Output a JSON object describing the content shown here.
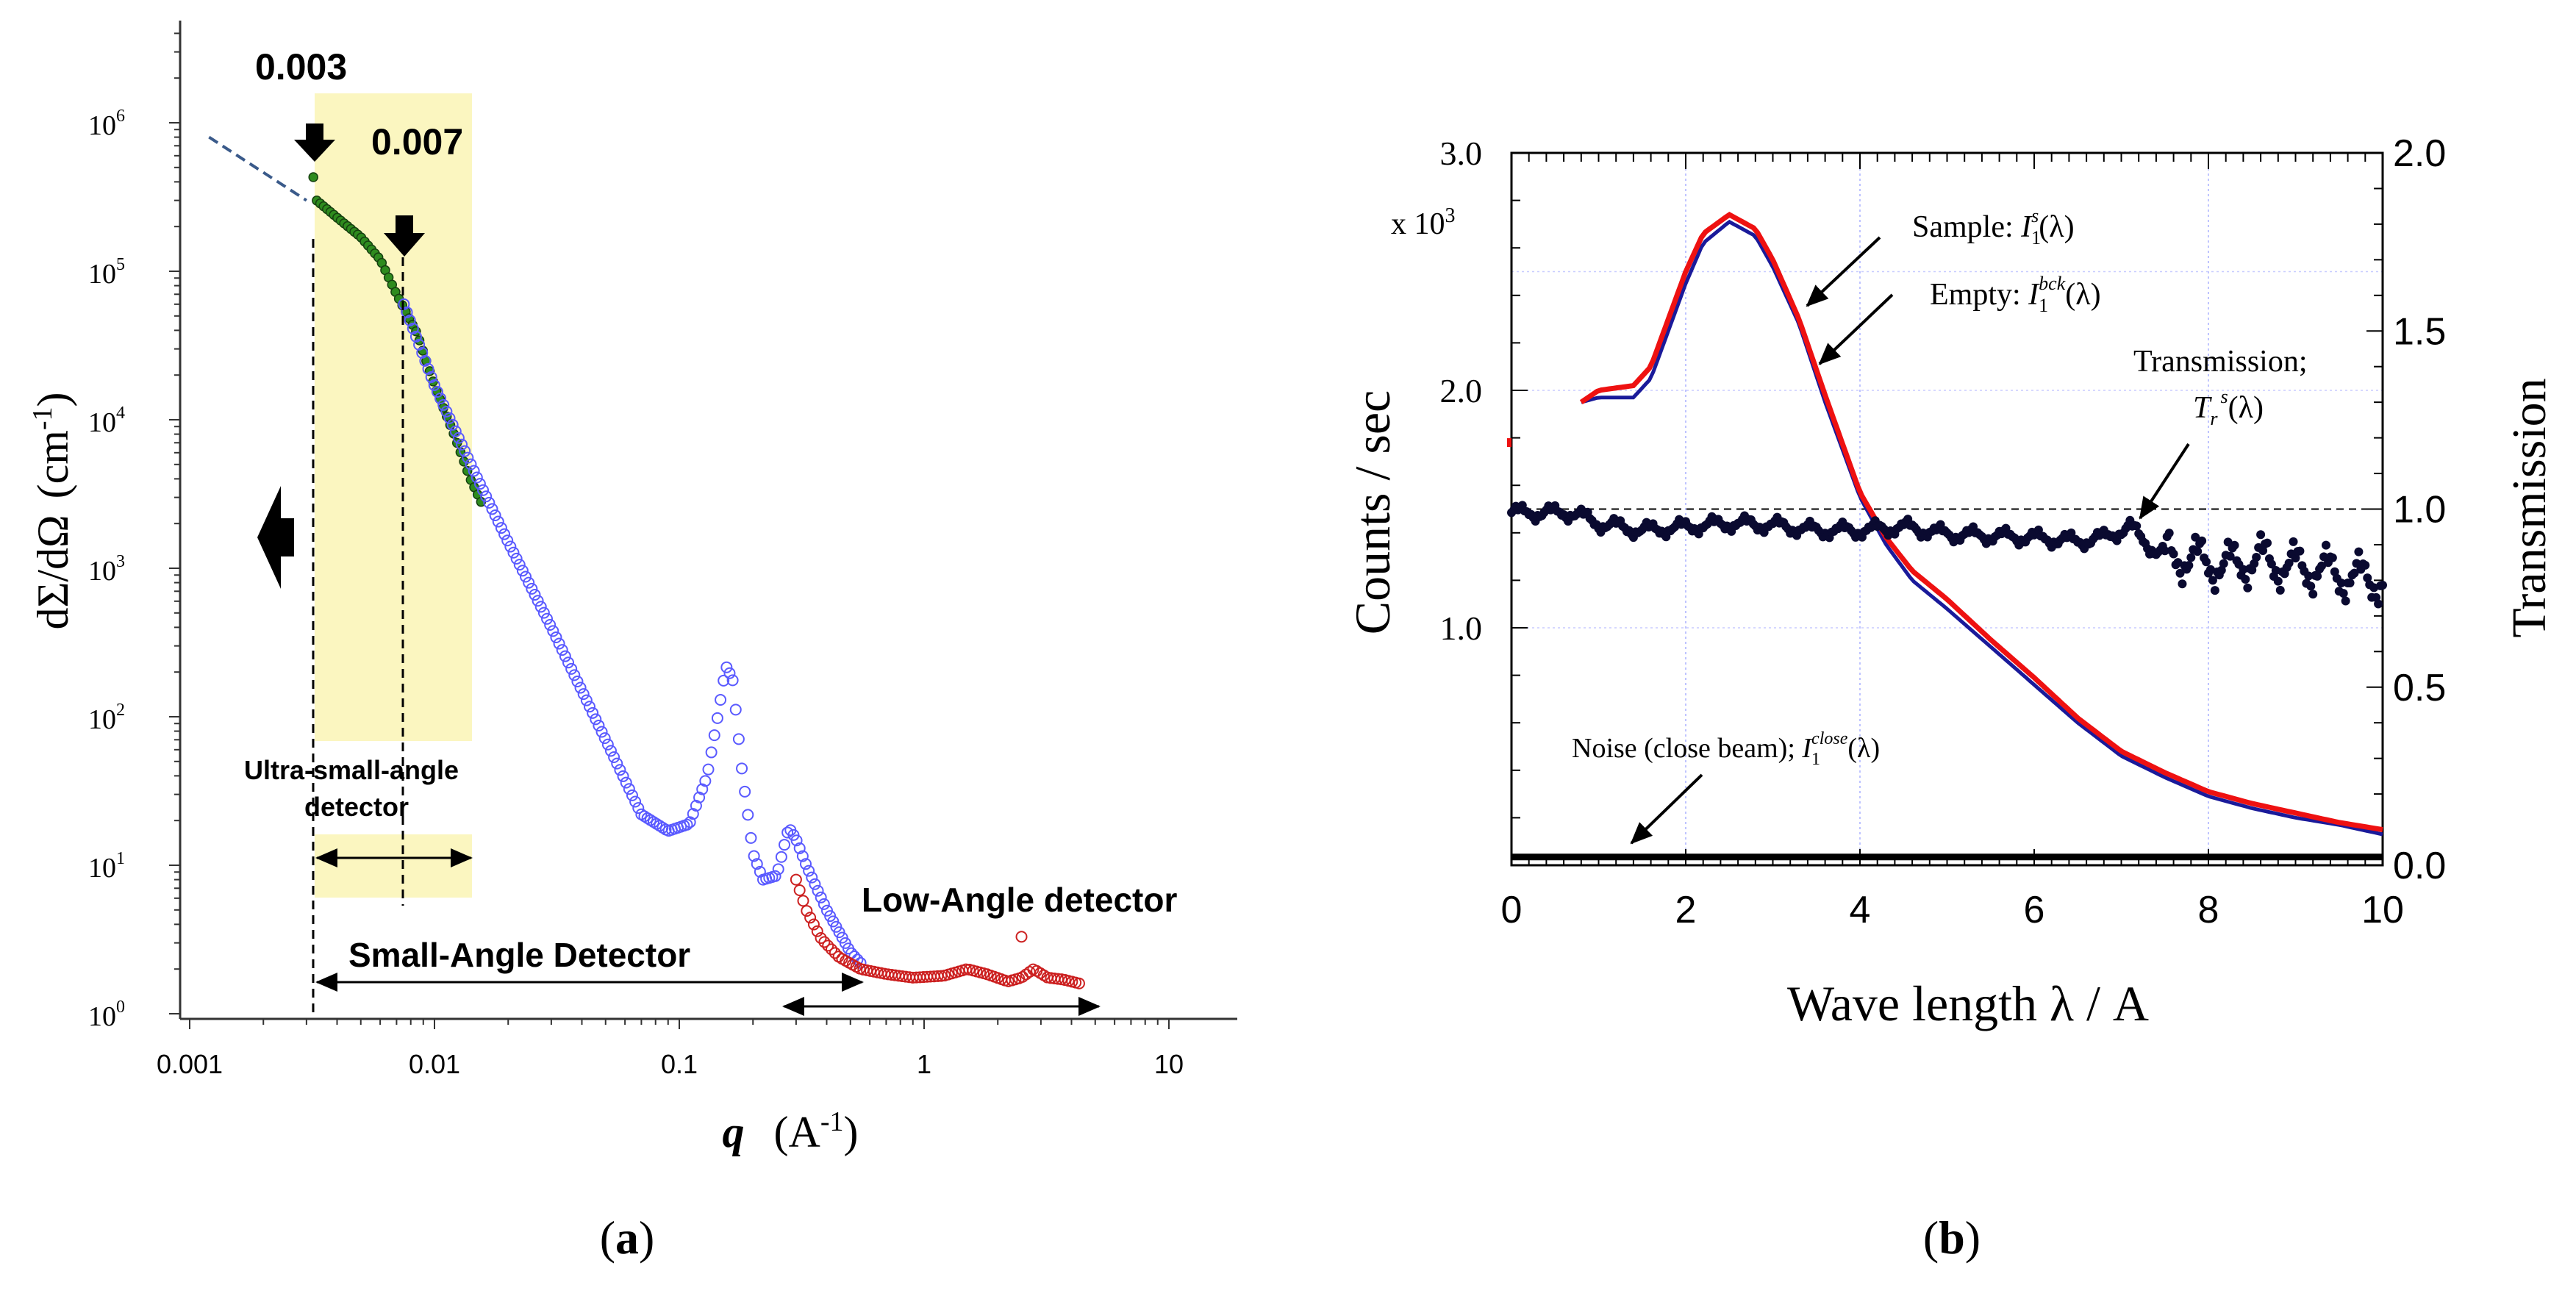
{
  "chart_data": [
    {
      "type": "scatter",
      "panel_label": "a",
      "xlabel": "q",
      "xunit": "(A",
      "xunit_sup": "-1",
      "xunit_end": ")",
      "ylabel": "dΣ/dΩ",
      "yunit": "(cm",
      "yunit_sup": "-1",
      "yunit_end": ")",
      "xscale": "log",
      "yscale": "log",
      "xlim": [
        0.00095,
        18
      ],
      "ylim": [
        0.9,
        5000000
      ],
      "xticks": [
        {
          "v": 0.001,
          "label": "0.001"
        },
        {
          "v": 0.01,
          "label": "0.01"
        },
        {
          "v": 0.1,
          "label": "0.1"
        },
        {
          "v": 1,
          "label": "1"
        },
        {
          "v": 10,
          "label": "10"
        }
      ],
      "yticks": [
        {
          "v": 1,
          "base": "10",
          "exp": "0"
        },
        {
          "v": 10,
          "base": "10",
          "exp": "1"
        },
        {
          "v": 100,
          "base": "10",
          "exp": "2"
        },
        {
          "v": 1000,
          "base": "10",
          "exp": "3"
        },
        {
          "v": 10000,
          "base": "10",
          "exp": "4"
        },
        {
          "v": 100000,
          "base": "10",
          "exp": "5"
        },
        {
          "v": 1000000,
          "base": "10",
          "exp": "6"
        }
      ],
      "series": [
        {
          "name": "ultra-small-angle",
          "color": "#2e8b1e",
          "marker": "filled",
          "x": [
            0.0032,
            0.0033,
            0.004,
            0.005,
            0.006,
            0.007,
            0.0085,
            0.01,
            0.012,
            0.014,
            0.016
          ],
          "y": [
            430000,
            300000,
            230000,
            170000,
            120000,
            70000,
            38000,
            17000,
            8000,
            4000,
            2500
          ]
        },
        {
          "name": "small-angle",
          "color": "#5a5aff",
          "marker": "open",
          "x": [
            0.0075,
            0.01,
            0.015,
            0.02,
            0.03,
            0.05,
            0.07,
            0.09,
            0.11,
            0.13,
            0.145,
            0.155,
            0.165,
            0.18,
            0.2,
            0.22,
            0.25,
            0.28,
            0.3,
            0.33,
            0.4,
            0.5,
            0.55
          ],
          "y": [
            60000,
            17000,
            4000,
            1500,
            400,
            70,
            22,
            17,
            19,
            40,
            110,
            220,
            180,
            45,
            12,
            8,
            8.5,
            18,
            15,
            10,
            5,
            2.6,
            2.2
          ]
        },
        {
          "name": "low-angle",
          "color": "#cc2020",
          "marker": "open",
          "x": [
            0.3,
            0.33,
            0.38,
            0.45,
            0.55,
            0.7,
            0.9,
            1.2,
            1.5,
            1.8,
            2.2,
            2.5,
            2.8,
            3.2,
            3.7,
            4.3
          ],
          "y": [
            8,
            5,
            3.2,
            2.4,
            2.0,
            1.85,
            1.75,
            1.8,
            2.0,
            1.85,
            1.65,
            1.75,
            2.0,
            1.75,
            1.7,
            1.6
          ]
        }
      ],
      "extrapolation": {
        "x": [
          0.0012,
          0.003
        ],
        "y": [
          800000,
          300000
        ],
        "style": "dashed"
      },
      "annotations": {
        "q1": "0.003",
        "q2": "0.007",
        "usad_line1": "Ultra-small-angle",
        "usad_line2": "detector",
        "sad": "Small-Angle Detector",
        "lad": "Low-Angle detector"
      }
    },
    {
      "type": "line",
      "panel_label": "b",
      "xlabel": "Wave length λ / A",
      "ylabel": "Counts / sec",
      "ylabel_right": "Transmission",
      "y_multiplier": "x 10",
      "y_multiplier_exp": "3",
      "xlim": [
        0,
        10
      ],
      "ylim": [
        0,
        3.0
      ],
      "ylim_right": [
        0,
        2.0
      ],
      "xticks": [
        "0",
        "2",
        "4",
        "6",
        "8",
        "10"
      ],
      "yticks": [
        {
          "v": 1.0,
          "label": "1.0"
        },
        {
          "v": 2.0,
          "label": "2.0"
        },
        {
          "v": 3.0,
          "label": "3.0"
        }
      ],
      "yticks_right": [
        "0.0",
        "0.5",
        "1.0",
        "1.5",
        "2.0"
      ],
      "series": [
        {
          "name": "Empty",
          "axis": "left",
          "color": "#1a1a9a",
          "x": [
            0.8,
            1.0,
            1.4,
            1.6,
            1.8,
            2.0,
            2.2,
            2.5,
            2.8,
            3.0,
            3.3,
            3.6,
            4.0,
            4.3,
            4.6,
            5.0,
            5.5,
            6.0,
            6.5,
            7.0,
            7.5,
            8.0,
            8.5,
            9.0,
            9.5,
            10.0
          ],
          "y": [
            1.95,
            1.97,
            1.97,
            2.05,
            2.25,
            2.45,
            2.62,
            2.71,
            2.65,
            2.52,
            2.28,
            1.95,
            1.55,
            1.35,
            1.2,
            1.08,
            0.92,
            0.76,
            0.6,
            0.46,
            0.37,
            0.29,
            0.24,
            0.2,
            0.17,
            0.13
          ]
        },
        {
          "name": "Sample",
          "axis": "left",
          "color": "#ee1111",
          "x": [
            0.8,
            1.0,
            1.4,
            1.6,
            1.8,
            2.0,
            2.2,
            2.5,
            2.8,
            3.0,
            3.3,
            3.6,
            4.0,
            4.3,
            4.6,
            5.0,
            5.5,
            6.0,
            6.5,
            7.0,
            7.5,
            8.0,
            8.5,
            9.0,
            9.5,
            10.0
          ],
          "y": [
            1.95,
            2.0,
            2.02,
            2.1,
            2.3,
            2.5,
            2.66,
            2.74,
            2.68,
            2.55,
            2.3,
            1.98,
            1.57,
            1.38,
            1.24,
            1.12,
            0.95,
            0.79,
            0.62,
            0.48,
            0.39,
            0.31,
            0.26,
            0.22,
            0.18,
            0.15
          ]
        },
        {
          "name": "Transmission",
          "axis": "right",
          "color": "#0a0a30",
          "x": [
            0,
            0.7,
            1.0,
            1.5,
            2.0,
            2.5,
            3.0,
            3.5,
            4.0,
            4.5,
            5.0,
            5.5,
            6.0,
            6.5,
            6.8,
            7.1,
            7.4,
            7.8,
            8.2,
            8.6,
            8.9,
            9.3,
            9.6,
            10.0
          ],
          "y": [
            0.99,
            0.99,
            0.96,
            0.94,
            0.95,
            0.96,
            0.955,
            0.94,
            0.94,
            0.95,
            0.93,
            0.925,
            0.92,
            0.91,
            0.92,
            0.95,
            0.88,
            0.86,
            0.84,
            0.86,
            0.84,
            0.83,
            0.81,
            0.8
          ]
        },
        {
          "name": "Noise",
          "axis": "left",
          "color": "#000000",
          "x": [
            0,
            10
          ],
          "y": [
            0.035,
            0.035
          ]
        }
      ],
      "reference_line": {
        "axis": "right",
        "y": 1.0,
        "style": "dashed"
      },
      "annotations": {
        "sample_prefix": "Sample: ",
        "sample_sup": "s",
        "empty_prefix": "Empty: ",
        "empty_sup": "bck",
        "trans_line1": "Transmission;",
        "trans_sym": "T",
        "trans_sub": "r",
        "trans_sup": "s",
        "noise_prefix": "Noise (close beam); ",
        "noise_sup": "close",
        "sym_I": "I",
        "sub_1": "1",
        "arg": "(λ)"
      }
    }
  ]
}
